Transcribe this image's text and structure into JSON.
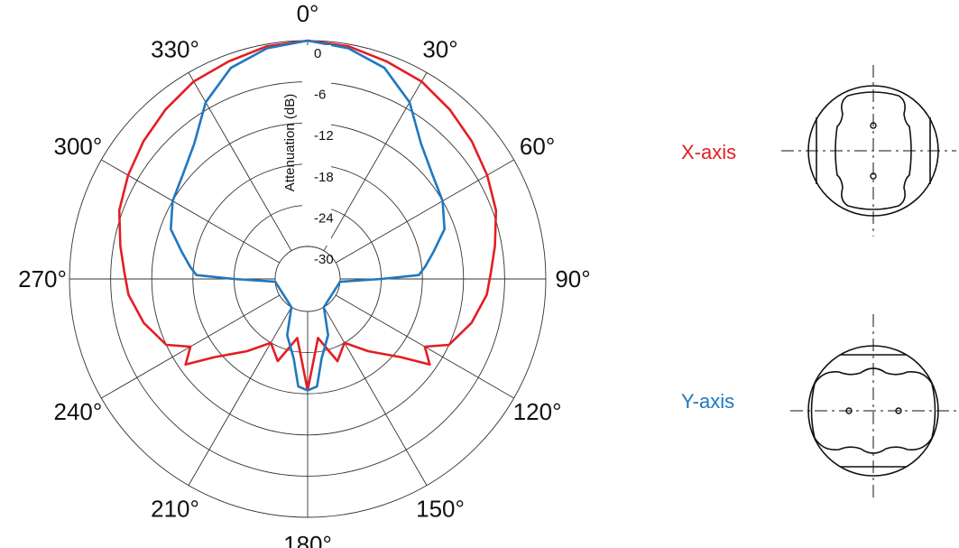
{
  "chart_data": {
    "type": "polar-line",
    "rlabel": "Attenuation (dB)",
    "rings": [
      "0",
      "-6",
      "-12",
      "-18",
      "-24",
      "-30"
    ],
    "ring_values": [
      0,
      -6,
      -12,
      -18,
      -24,
      -30
    ],
    "angle_labels": [
      "0°",
      "30°",
      "60°",
      "90°",
      "120°",
      "150°",
      "180°",
      "210°",
      "240°",
      "270°",
      "300°",
      "330°"
    ],
    "angle_values": [
      0,
      30,
      60,
      90,
      120,
      150,
      180,
      210,
      240,
      270,
      300,
      330
    ],
    "direction": "clockwise, 0° at top",
    "series": [
      {
        "name": "X-axis",
        "color": "#e31e24",
        "theta": [
          0,
          10,
          20,
          30,
          40,
          50,
          60,
          70,
          80,
          88,
          95,
          105,
          115,
          120,
          125,
          130,
          140,
          150,
          160,
          170,
          180,
          190,
          200,
          210,
          220,
          230,
          235,
          240,
          245,
          255,
          265,
          272,
          280,
          290,
          300,
          310,
          320,
          330,
          340,
          350
        ],
        "r": [
          0,
          -0.3,
          -1,
          -1.5,
          -2.5,
          -3.5,
          -4.5,
          -5.5,
          -7,
          -8,
          -8.5,
          -10,
          -12,
          -15,
          -13,
          -17,
          -21,
          -24,
          -22,
          -26,
          -18.5,
          -26,
          -22,
          -24,
          -21,
          -17,
          -13,
          -15,
          -12,
          -10,
          -8.5,
          -8,
          -7,
          -5.5,
          -4.5,
          -3.5,
          -2.5,
          -1.5,
          -1,
          -0.3
        ]
      },
      {
        "name": "Y-axis",
        "color": "#1f78c1",
        "theta": [
          0,
          10,
          20,
          30,
          40,
          50,
          60,
          70,
          78,
          84,
          88,
          90,
          95,
          150,
          160,
          170,
          175,
          180,
          185,
          190,
          200,
          210,
          265,
          270,
          272,
          276,
          282,
          290,
          300,
          310,
          320,
          330,
          340,
          350
        ],
        "r": [
          0,
          -0.6,
          -2,
          -5,
          -9,
          -11,
          -12,
          -13.5,
          -16,
          -17.5,
          -18.5,
          -24,
          -30,
          -30,
          -26,
          -23,
          -19,
          -18.5,
          -19,
          -23,
          -26,
          -30,
          -30,
          -24,
          -18.5,
          -17.5,
          -16,
          -13.5,
          -12,
          -11,
          -9,
          -5,
          -2,
          -0.6
        ]
      }
    ]
  },
  "legend": {
    "x_label": "X-axis",
    "y_label": "Y-axis",
    "x_color": "#e31e24",
    "y_color": "#1f78c1"
  }
}
